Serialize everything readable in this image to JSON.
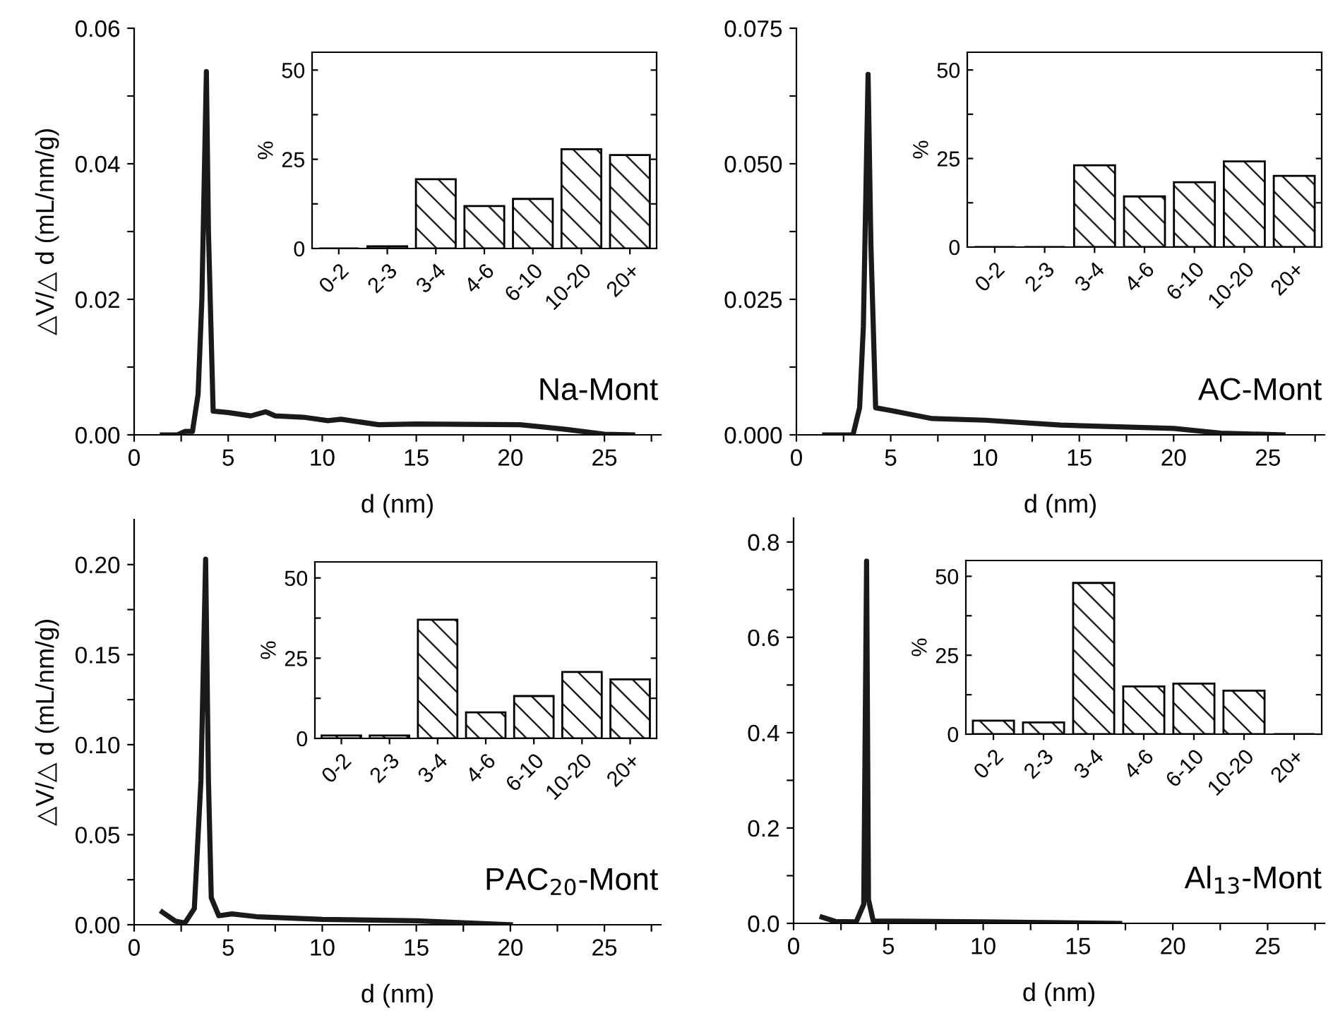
{
  "chart_data": [
    {
      "type": "line",
      "xlabel": "d (nm)",
      "ylabel": "△V/△ d (mL/nm/g)",
      "annotations": [
        "Na-Mont"
      ],
      "x": [
        1.5,
        2.3,
        2.7,
        3.1,
        3.4,
        3.6,
        3.84,
        3.95,
        4.2,
        5,
        6.2,
        7,
        7.5,
        9,
        10.3,
        11,
        13,
        15,
        20.5,
        23,
        25,
        26.5
      ],
      "series": [
        {
          "color": "#1a1a1a",
          "values": [
            0,
            0,
            0.0005,
            0.0005,
            0.006,
            0.02,
            0.0536,
            0.03,
            0.0035,
            0.0033,
            0.0028,
            0.0034,
            0.0028,
            0.0026,
            0.0021,
            0.0023,
            0.0015,
            0.0016,
            0.0015,
            0.0008,
            0.0001,
            0
          ]
        }
      ],
      "xlim": [
        0,
        28
      ],
      "xticks": [
        0,
        {
          "value": 2.5,
          "label": null
        },
        5,
        {
          "value": 7.5,
          "label": null
        },
        10,
        {
          "value": 12.5,
          "label": null
        },
        15,
        {
          "value": 17.5,
          "label": null
        },
        20,
        {
          "value": 22.5,
          "label": null
        },
        25,
        {
          "value": 27.5,
          "label": null
        }
      ],
      "ylim": [
        0,
        0.06
      ],
      "yticks": [
        {
          "value": 0,
          "label": "0.00"
        },
        {
          "value": 0.01,
          "label": null
        },
        {
          "value": 0.02,
          "label": "0.02"
        },
        {
          "value": 0.03,
          "label": null
        },
        {
          "value": 0.04,
          "label": "0.04"
        },
        {
          "value": 0.05,
          "label": null
        },
        {
          "value": 0.06,
          "label": "0.06"
        }
      ]
    },
    {
      "type": "bar",
      "ylabel": "%",
      "categories": [
        "0-2",
        "2-3",
        "3-4",
        "4-6",
        "6-10",
        "10-20",
        "20+"
      ],
      "values": [
        0,
        0.6,
        19.4,
        11.9,
        13.9,
        27.8,
        26.2
      ],
      "color": "#000000",
      "ylim": [
        0,
        55
      ],
      "yticks": [
        0,
        {
          "value": 12.5,
          "label": null
        },
        25,
        {
          "value": 37.5,
          "label": null
        },
        50
      ]
    },
    {
      "type": "line",
      "xlabel": "d (nm)",
      "annotations": [
        "AC-Mont"
      ],
      "x": [
        1.5,
        3,
        3.35,
        3.55,
        3.8,
        3.95,
        4.2,
        5,
        7.2,
        10,
        14,
        20,
        22.5,
        25.8
      ],
      "series": [
        {
          "color": "#1a1a1a",
          "values": [
            0,
            0,
            0.005,
            0.02,
            0.0665,
            0.035,
            0.005,
            0.0045,
            0.003,
            0.0027,
            0.0018,
            0.0012,
            0.0003,
            0
          ]
        }
      ],
      "xlim": [
        0,
        28
      ],
      "xticks": [
        0,
        {
          "value": 2.5,
          "label": null
        },
        5,
        {
          "value": 7.5,
          "label": null
        },
        10,
        {
          "value": 12.5,
          "label": null
        },
        15,
        {
          "value": 17.5,
          "label": null
        },
        20,
        {
          "value": 22.5,
          "label": null
        },
        25,
        {
          "value": 27.5,
          "label": null
        }
      ],
      "ylim": [
        0,
        0.075
      ],
      "yticks": [
        {
          "value": 0,
          "label": "0.000"
        },
        {
          "value": 0.0125,
          "label": null
        },
        {
          "value": 0.025,
          "label": "0.025"
        },
        {
          "value": 0.0375,
          "label": null
        },
        {
          "value": 0.05,
          "label": "0.050"
        },
        {
          "value": 0.0625,
          "label": null
        },
        {
          "value": 0.075,
          "label": "0.075"
        }
      ]
    },
    {
      "type": "bar",
      "ylabel": "%",
      "categories": [
        "0-2",
        "2-3",
        "3-4",
        "4-6",
        "6-10",
        "10-20",
        "20+"
      ],
      "values": [
        0,
        0,
        23.1,
        14.3,
        18.3,
        24.2,
        20.1
      ],
      "color": "#000000",
      "ylim": [
        0,
        55
      ],
      "yticks": [
        0,
        {
          "value": 12.5,
          "label": null
        },
        25,
        {
          "value": 37.5,
          "label": null
        },
        50
      ]
    },
    {
      "type": "line",
      "xlabel": "d (nm)",
      "ylabel": "△V/△ d (mL/nm/g)",
      "annotations": [
        "PAC$_{20}$-Mont"
      ],
      "x": [
        1.5,
        2.2,
        2.7,
        3.2,
        3.55,
        3.8,
        3.95,
        4.1,
        4.5,
        5.2,
        6.5,
        10,
        15,
        20
      ],
      "series": [
        {
          "color": "#1a1a1a",
          "values": [
            0.007,
            0.002,
            0.001,
            0.009,
            0.08,
            0.203,
            0.08,
            0.015,
            0.005,
            0.006,
            0.0045,
            0.003,
            0.0022,
            0
          ]
        }
      ],
      "xlim": [
        0,
        28
      ],
      "xticks": [
        0,
        {
          "value": 2.5,
          "label": null
        },
        5,
        {
          "value": 7.5,
          "label": null
        },
        10,
        {
          "value": 12.5,
          "label": null
        },
        15,
        {
          "value": 17.5,
          "label": null
        },
        20,
        {
          "value": 22.5,
          "label": null
        },
        25,
        {
          "value": 27.5,
          "label": null
        }
      ],
      "ylim": [
        0,
        0.225
      ],
      "yticks": [
        {
          "value": 0,
          "label": "0.00"
        },
        {
          "value": 0.025,
          "label": null
        },
        {
          "value": 0.05,
          "label": "0.05"
        },
        {
          "value": 0.075,
          "label": null
        },
        {
          "value": 0.1,
          "label": "0.10"
        },
        {
          "value": 0.125,
          "label": null
        },
        {
          "value": 0.15,
          "label": "0.15"
        },
        {
          "value": 0.175,
          "label": null
        },
        {
          "value": 0.2,
          "label": "0.20"
        }
      ]
    },
    {
      "type": "bar",
      "ylabel": "%",
      "categories": [
        "0-2",
        "2-3",
        "3-4",
        "4-6",
        "6-10",
        "10-20",
        "20+"
      ],
      "values": [
        0.9,
        0.9,
        37,
        8.1,
        13.2,
        20.7,
        18.4
      ],
      "color": "#000000",
      "ylim": [
        0,
        55
      ],
      "yticks": [
        0,
        {
          "value": 12.5,
          "label": null
        },
        25,
        {
          "value": 37.5,
          "label": null
        },
        50
      ]
    },
    {
      "type": "line",
      "xlabel": "d (nm)",
      "annotations": [
        "Al$_{13}$-Mont"
      ],
      "x": [
        1.5,
        2.2,
        3.3,
        3.7,
        3.85,
        3.95,
        4.2,
        10,
        17.2
      ],
      "series": [
        {
          "color": "#1a1a1a",
          "values": [
            0.013,
            0.004,
            0.003,
            0.04,
            0.76,
            0.05,
            0.005,
            0.003,
            0
          ]
        }
      ],
      "xlim": [
        0,
        28
      ],
      "xticks": [
        0,
        {
          "value": 2.5,
          "label": null
        },
        5,
        {
          "value": 7.5,
          "label": null
        },
        10,
        {
          "value": 12.5,
          "label": null
        },
        15,
        {
          "value": 17.5,
          "label": null
        },
        20,
        {
          "value": 22.5,
          "label": null
        },
        25,
        {
          "value": 27.5,
          "label": null
        }
      ],
      "ylim": [
        0,
        0.85
      ],
      "yticks": [
        {
          "value": 0,
          "label": "0.0"
        },
        {
          "value": 0.1,
          "label": null
        },
        {
          "value": 0.2,
          "label": "0.2"
        },
        {
          "value": 0.3,
          "label": null
        },
        {
          "value": 0.4,
          "label": "0.4"
        },
        {
          "value": 0.5,
          "label": null
        },
        {
          "value": 0.6,
          "label": "0.6"
        },
        {
          "value": 0.7,
          "label": null
        },
        {
          "value": 0.8,
          "label": "0.8"
        }
      ]
    },
    {
      "type": "bar",
      "ylabel": "%",
      "categories": [
        "0-2",
        "2-3",
        "3-4",
        "4-6",
        "6-10",
        "10-20",
        "20+"
      ],
      "values": [
        4.3,
        3.7,
        47.9,
        15.1,
        16,
        13.8,
        0
      ],
      "color": "#000000",
      "ylim": [
        0,
        55
      ],
      "yticks": [
        0,
        {
          "value": 12.5,
          "label": null
        },
        25,
        {
          "value": 37.5,
          "label": null
        },
        50
      ]
    }
  ]
}
